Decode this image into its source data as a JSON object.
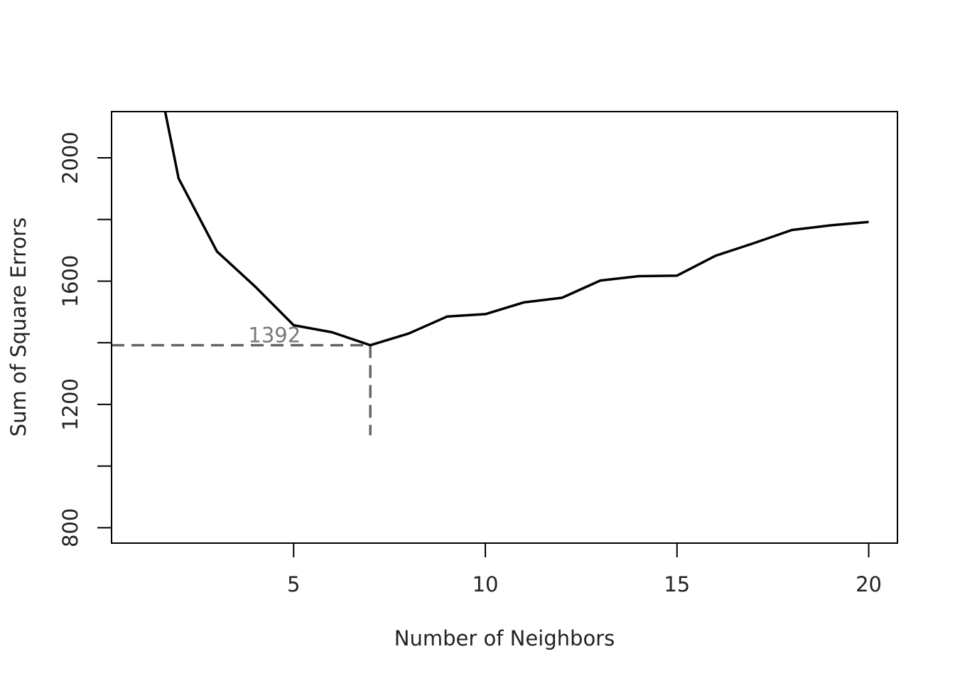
{
  "chart_data": {
    "type": "line",
    "title": "",
    "xlabel": "Number of Neighbors",
    "ylabel": "Sum of Square Errors",
    "xlim": [
      0.25,
      20.75
    ],
    "ylim": [
      750,
      2150
    ],
    "x_ticks": [
      5,
      10,
      15,
      20
    ],
    "x_tick_labels": [
      "5",
      "10",
      "15",
      "20"
    ],
    "y_ticks": [
      800,
      1000,
      1200,
      1400,
      1600,
      1800,
      2000
    ],
    "y_tick_labels": [
      "800",
      "",
      "1200",
      "",
      "1600",
      "",
      "2000"
    ],
    "grid": false,
    "series": [
      {
        "color": "#000000",
        "x": [
          1,
          2,
          3,
          4,
          5,
          6,
          7,
          8,
          9,
          10,
          11,
          12,
          13,
          14,
          15,
          16,
          17,
          18,
          19,
          20
        ],
        "values": [
          2550,
          1933,
          1696,
          1582,
          1457,
          1434,
          1392,
          1430,
          1485,
          1493,
          1531,
          1546,
          1602,
          1616,
          1618,
          1682,
          1723,
          1766,
          1781,
          1792
        ]
      }
    ],
    "annotations": [
      {
        "text": "1392",
        "color": "#7a7a7a",
        "x": 4.5,
        "y": 1392,
        "hline": {
          "y": 1392,
          "from_x": 0.25,
          "to_x": 7
        },
        "vline": {
          "x": 7,
          "from_y": 1392,
          "to_y": 1100
        }
      }
    ]
  }
}
